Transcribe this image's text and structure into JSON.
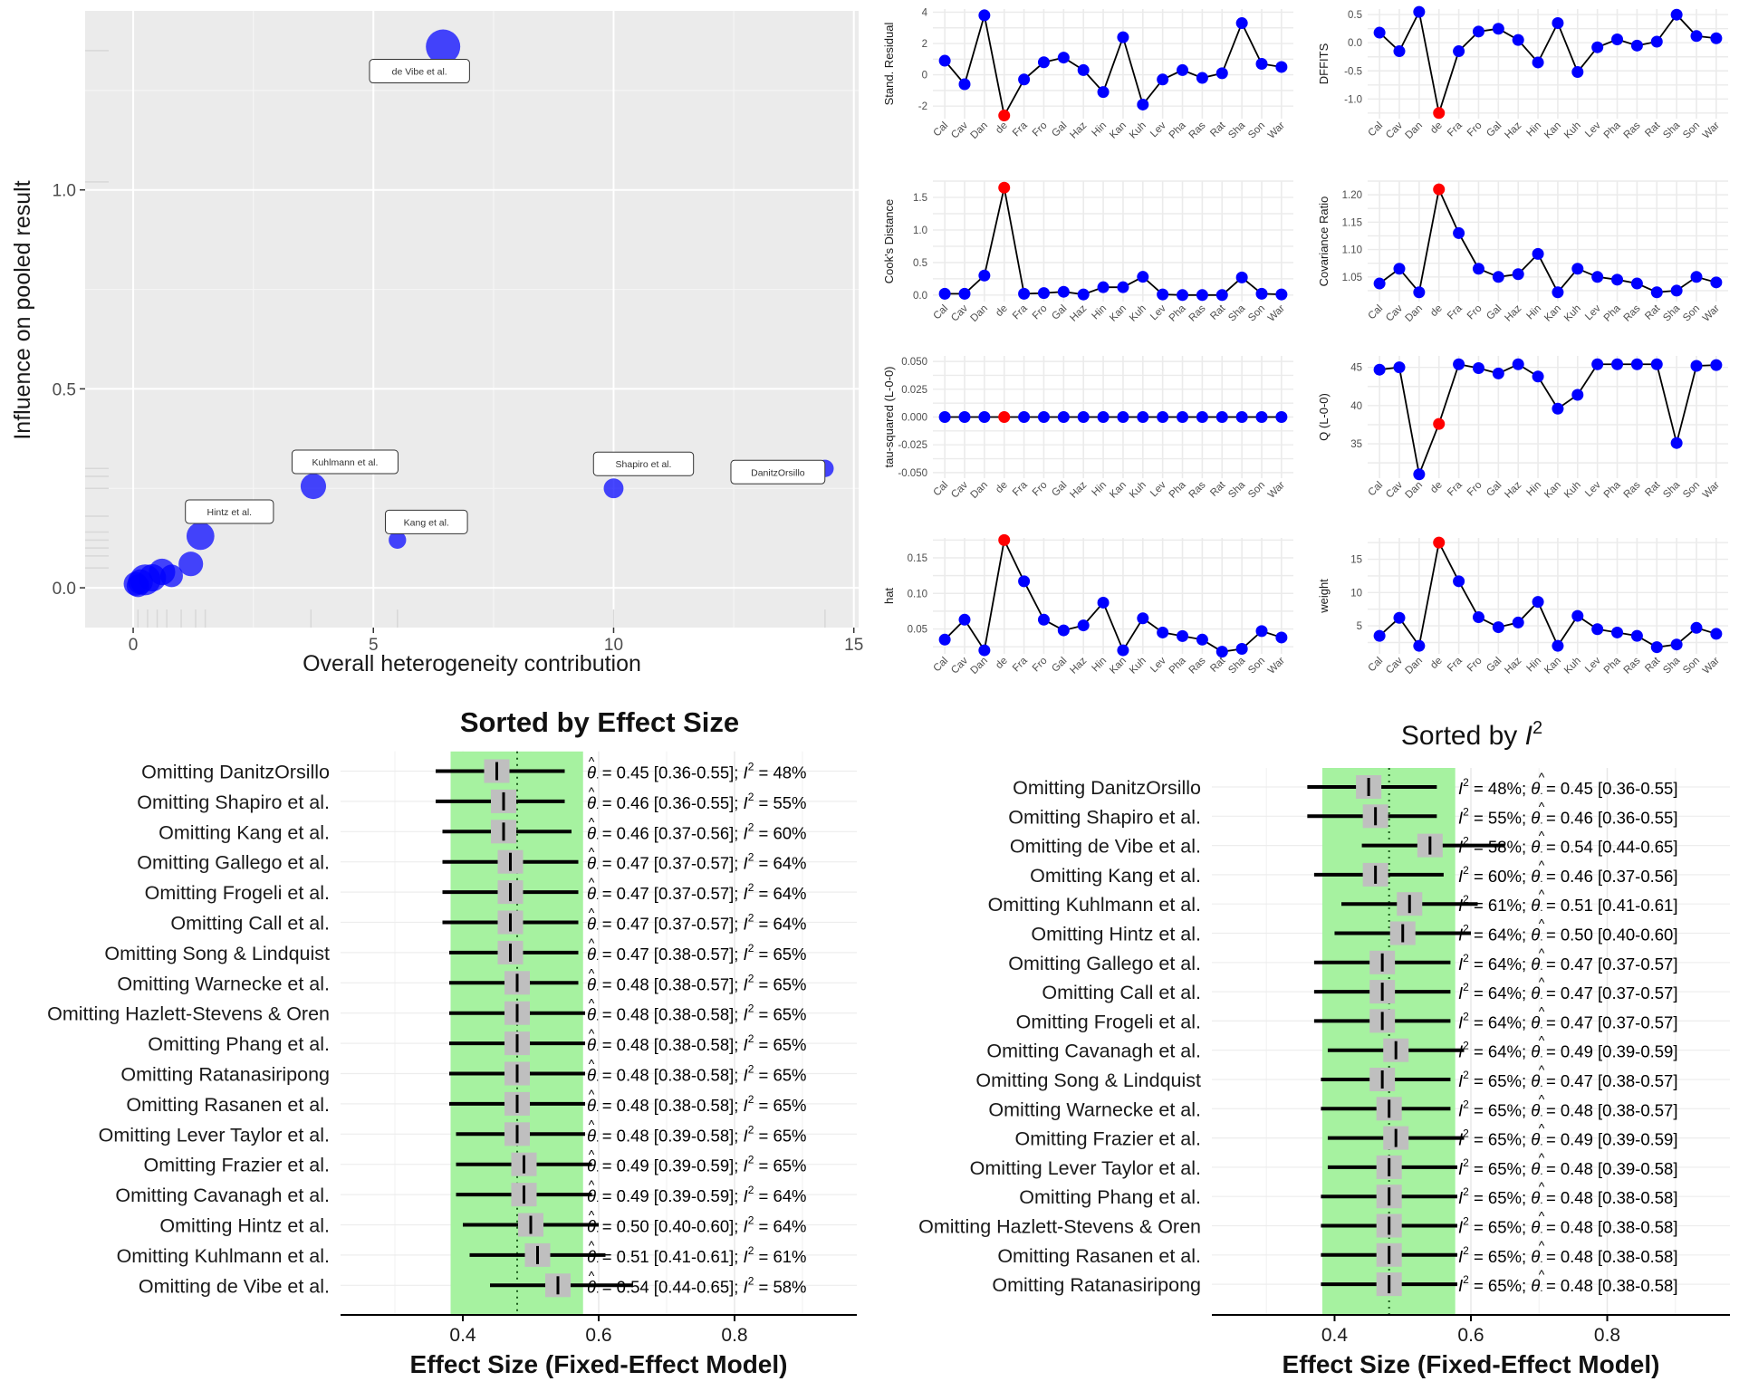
{
  "colors": {
    "panel_bg": "#EBEBEB",
    "grid_major": "#FFFFFF",
    "point_blue": "#0000FF",
    "point_red": "#FF0000",
    "green_band": "#A6F2A0",
    "box_grey": "#BFBFBF",
    "text_dark": "#1A1A1A",
    "axis_text": "#4D4D4D"
  },
  "chart_data": [
    {
      "id": "baujat",
      "type": "scatter",
      "xlabel": "Overall heterogeneity contribution",
      "ylabel": "Influence on pooled result",
      "xlim": [
        -1,
        15.1
      ],
      "ylim": [
        -0.1,
        1.45
      ],
      "xticks": [
        0,
        5,
        10,
        15
      ],
      "yticks": [
        0.0,
        0.5,
        1.0
      ],
      "ytick_labels": [
        "0.0",
        "0.5",
        "1.0"
      ],
      "points": [
        {
          "x": 6.45,
          "y": 1.36,
          "size": 1.0,
          "label": "de Vibe et al."
        },
        {
          "x": 3.75,
          "y": 0.255,
          "size": 0.62,
          "label": "Kuhlmann et al."
        },
        {
          "x": 10.0,
          "y": 0.25,
          "size": 0.38,
          "label": "Shapiro et al."
        },
        {
          "x": 14.4,
          "y": 0.3,
          "size": 0.28,
          "label": "DanitzOrsillo"
        },
        {
          "x": 5.5,
          "y": 0.12,
          "size": 0.28,
          "label": "Kang et al."
        },
        {
          "x": 1.4,
          "y": 0.13,
          "size": 0.72,
          "label": "Hintz et al."
        },
        {
          "x": 1.2,
          "y": 0.06,
          "size": 0.58,
          "label": ""
        },
        {
          "x": 0.8,
          "y": 0.03,
          "size": 0.5,
          "label": ""
        },
        {
          "x": 0.6,
          "y": 0.04,
          "size": 0.66,
          "label": ""
        },
        {
          "x": 0.4,
          "y": 0.025,
          "size": 0.7,
          "label": ""
        },
        {
          "x": 0.25,
          "y": 0.02,
          "size": 0.85,
          "label": ""
        },
        {
          "x": 0.15,
          "y": 0.015,
          "size": 0.6,
          "label": ""
        },
        {
          "x": 0.05,
          "y": 0.01,
          "size": 0.55,
          "label": ""
        },
        {
          "x": 0.1,
          "y": 0.005,
          "size": 0.5,
          "label": ""
        }
      ]
    },
    {
      "id": "diagnostics",
      "type": "line",
      "x_labels": [
        "Cal",
        "Cav",
        "Dan",
        "de",
        "Fra",
        "Fro",
        "Gal",
        "Haz",
        "Hin",
        "Kan",
        "Kuh",
        "Lev",
        "Pha",
        "Ras",
        "Rat",
        "Sha",
        "Son",
        "War"
      ],
      "highlight_index": 3,
      "panels": [
        {
          "name": "Stand. Residual",
          "ylim": [
            -2.8,
            4.2
          ],
          "yticks": [
            -2,
            0,
            2,
            4
          ],
          "ytick_labels": [
            "-2",
            "0",
            "2",
            "4"
          ],
          "values": [
            0.9,
            -0.6,
            3.8,
            -2.6,
            -0.3,
            0.8,
            1.1,
            0.3,
            -1.1,
            2.4,
            -1.9,
            -0.3,
            0.3,
            -0.2,
            0.1,
            3.3,
            0.7,
            0.5
          ]
        },
        {
          "name": "DFFITS",
          "ylim": [
            -1.35,
            0.6
          ],
          "yticks": [
            -1.0,
            -0.5,
            0.0,
            0.5
          ],
          "ytick_labels": [
            "-1.0",
            "-0.5",
            "0.0",
            "0.5"
          ],
          "values": [
            0.18,
            -0.15,
            0.55,
            -1.25,
            -0.15,
            0.2,
            0.25,
            0.05,
            -0.35,
            0.35,
            -0.52,
            -0.08,
            0.06,
            -0.05,
            0.02,
            0.5,
            0.12,
            0.08
          ]
        },
        {
          "name": "Cook's Distance",
          "ylim": [
            -0.1,
            1.75
          ],
          "yticks": [
            0.0,
            0.5,
            1.0,
            1.5
          ],
          "ytick_labels": [
            "0.0",
            "0.5",
            "1.0",
            "1.5"
          ],
          "values": [
            0.02,
            0.02,
            0.3,
            1.65,
            0.02,
            0.03,
            0.05,
            0.01,
            0.12,
            0.12,
            0.28,
            0.01,
            0.0,
            0.0,
            0.0,
            0.27,
            0.02,
            0.01
          ]
        },
        {
          "name": "Covariance Ratio",
          "ylim": [
            1.005,
            1.225
          ],
          "yticks": [
            1.05,
            1.1,
            1.15,
            1.2
          ],
          "ytick_labels": [
            "1.05",
            "1.10",
            "1.15",
            "1.20"
          ],
          "values": [
            1.038,
            1.065,
            1.022,
            1.21,
            1.13,
            1.065,
            1.05,
            1.055,
            1.092,
            1.022,
            1.065,
            1.05,
            1.045,
            1.038,
            1.022,
            1.025,
            1.05,
            1.04
          ]
        },
        {
          "name": "tau-squared (L-0-0)",
          "ylim": [
            -0.055,
            0.055
          ],
          "yticks": [
            -0.05,
            -0.025,
            0.0,
            0.025,
            0.05
          ],
          "ytick_labels": [
            "-0.050",
            "-0.025",
            "0.000",
            "0.025",
            "0.050"
          ],
          "values": [
            0,
            0,
            0,
            0,
            0,
            0,
            0,
            0,
            0,
            0,
            0,
            0,
            0,
            0,
            0,
            0,
            0,
            0
          ]
        },
        {
          "name": "Q (L-0-0)",
          "ylim": [
            30.5,
            46.5
          ],
          "yticks": [
            35,
            40,
            45
          ],
          "ytick_labels": [
            "35",
            "40",
            "45"
          ],
          "values": [
            44.7,
            45.0,
            31.0,
            37.6,
            45.4,
            44.9,
            44.2,
            45.4,
            43.8,
            39.6,
            41.4,
            45.4,
            45.4,
            45.4,
            45.4,
            35.1,
            45.2,
            45.3
          ]
        },
        {
          "name": "hat",
          "ylim": [
            0.015,
            0.178
          ],
          "yticks": [
            0.05,
            0.1,
            0.15
          ],
          "ytick_labels": [
            "0.05",
            "0.10",
            "0.15"
          ],
          "values": [
            0.035,
            0.063,
            0.02,
            0.175,
            0.117,
            0.063,
            0.048,
            0.055,
            0.087,
            0.02,
            0.065,
            0.045,
            0.04,
            0.035,
            0.018,
            0.022,
            0.047,
            0.038
          ]
        },
        {
          "name": "weight",
          "ylim": [
            0.8,
            18.2
          ],
          "yticks": [
            5,
            10,
            15
          ],
          "ytick_labels": [
            "5",
            "10",
            "15"
          ],
          "values": [
            3.5,
            6.2,
            2.0,
            17.5,
            11.7,
            6.3,
            4.8,
            5.5,
            8.6,
            2.0,
            6.5,
            4.5,
            4.0,
            3.5,
            1.8,
            2.2,
            4.7,
            3.8
          ]
        }
      ]
    },
    {
      "id": "forest_es",
      "type": "forest",
      "title": "Sorted by Effect Size",
      "xlabel": "Effect Size (Fixed-Effect Model)",
      "xlim": [
        0.22,
        0.98
      ],
      "xticks": [
        0.4,
        0.6,
        0.8
      ],
      "xtick_labels": [
        "0.4",
        "0.6",
        "0.8"
      ],
      "pooled": 0.48,
      "ci_band": [
        0.382,
        0.577
      ],
      "annotation_order": "theta_first",
      "rows": [
        {
          "label": "Omitting DanitzOrsillo",
          "est": 0.45,
          "lo": 0.36,
          "hi": 0.55,
          "i2": 48
        },
        {
          "label": "Omitting Shapiro et al.",
          "est": 0.46,
          "lo": 0.36,
          "hi": 0.55,
          "i2": 55
        },
        {
          "label": "Omitting Kang et al.",
          "est": 0.46,
          "lo": 0.37,
          "hi": 0.56,
          "i2": 60
        },
        {
          "label": "Omitting Gallego et al.",
          "est": 0.47,
          "lo": 0.37,
          "hi": 0.57,
          "i2": 64
        },
        {
          "label": "Omitting Frogeli et al.",
          "est": 0.47,
          "lo": 0.37,
          "hi": 0.57,
          "i2": 64
        },
        {
          "label": "Omitting Call et al.",
          "est": 0.47,
          "lo": 0.37,
          "hi": 0.57,
          "i2": 64
        },
        {
          "label": "Omitting Song & Lindquist",
          "est": 0.47,
          "lo": 0.38,
          "hi": 0.57,
          "i2": 65
        },
        {
          "label": "Omitting Warnecke et al.",
          "est": 0.48,
          "lo": 0.38,
          "hi": 0.57,
          "i2": 65
        },
        {
          "label": "Omitting Hazlett-Stevens & Oren",
          "est": 0.48,
          "lo": 0.38,
          "hi": 0.58,
          "i2": 65
        },
        {
          "label": "Omitting Phang et al.",
          "est": 0.48,
          "lo": 0.38,
          "hi": 0.58,
          "i2": 65
        },
        {
          "label": "Omitting Ratanasiripong",
          "est": 0.48,
          "lo": 0.38,
          "hi": 0.58,
          "i2": 65
        },
        {
          "label": "Omitting Rasanen et al.",
          "est": 0.48,
          "lo": 0.38,
          "hi": 0.58,
          "i2": 65
        },
        {
          "label": "Omitting Lever Taylor et al.",
          "est": 0.48,
          "lo": 0.39,
          "hi": 0.58,
          "i2": 65
        },
        {
          "label": "Omitting Frazier et al.",
          "est": 0.49,
          "lo": 0.39,
          "hi": 0.59,
          "i2": 65
        },
        {
          "label": "Omitting Cavanagh et al.",
          "est": 0.49,
          "lo": 0.39,
          "hi": 0.59,
          "i2": 64
        },
        {
          "label": "Omitting Hintz et al.",
          "est": 0.5,
          "lo": 0.4,
          "hi": 0.6,
          "i2": 64
        },
        {
          "label": "Omitting Kuhlmann et al.",
          "est": 0.51,
          "lo": 0.41,
          "hi": 0.61,
          "i2": 61
        },
        {
          "label": "Omitting de Vibe et al.",
          "est": 0.54,
          "lo": 0.44,
          "hi": 0.65,
          "i2": 58
        }
      ]
    },
    {
      "id": "forest_i2",
      "type": "forest",
      "title": "Sorted by I2",
      "title_text": "Sorted by ",
      "title_symbol": "I",
      "title_sup": "2",
      "xlabel": "Effect Size (Fixed-Effect Model)",
      "xlim": [
        0.22,
        0.98
      ],
      "xticks": [
        0.4,
        0.6,
        0.8
      ],
      "xtick_labels": [
        "0.4",
        "0.6",
        "0.8"
      ],
      "pooled": 0.48,
      "ci_band": [
        0.382,
        0.577
      ],
      "annotation_order": "i2_first",
      "rows": [
        {
          "label": "Omitting DanitzOrsillo",
          "est": 0.45,
          "lo": 0.36,
          "hi": 0.55,
          "i2": 48
        },
        {
          "label": "Omitting Shapiro et al.",
          "est": 0.46,
          "lo": 0.36,
          "hi": 0.55,
          "i2": 55
        },
        {
          "label": "Omitting de Vibe et al.",
          "est": 0.54,
          "lo": 0.44,
          "hi": 0.65,
          "i2": 58
        },
        {
          "label": "Omitting Kang et al.",
          "est": 0.46,
          "lo": 0.37,
          "hi": 0.56,
          "i2": 60
        },
        {
          "label": "Omitting Kuhlmann et al.",
          "est": 0.51,
          "lo": 0.41,
          "hi": 0.61,
          "i2": 61
        },
        {
          "label": "Omitting Hintz et al.",
          "est": 0.5,
          "lo": 0.4,
          "hi": 0.6,
          "i2": 64
        },
        {
          "label": "Omitting Gallego et al.",
          "est": 0.47,
          "lo": 0.37,
          "hi": 0.57,
          "i2": 64
        },
        {
          "label": "Omitting Call et al.",
          "est": 0.47,
          "lo": 0.37,
          "hi": 0.57,
          "i2": 64
        },
        {
          "label": "Omitting Frogeli et al.",
          "est": 0.47,
          "lo": 0.37,
          "hi": 0.57,
          "i2": 64
        },
        {
          "label": "Omitting Cavanagh et al.",
          "est": 0.49,
          "lo": 0.39,
          "hi": 0.59,
          "i2": 64
        },
        {
          "label": "Omitting Song & Lindquist",
          "est": 0.47,
          "lo": 0.38,
          "hi": 0.57,
          "i2": 65
        },
        {
          "label": "Omitting Warnecke et al.",
          "est": 0.48,
          "lo": 0.38,
          "hi": 0.57,
          "i2": 65
        },
        {
          "label": "Omitting Frazier et al.",
          "est": 0.49,
          "lo": 0.39,
          "hi": 0.59,
          "i2": 65
        },
        {
          "label": "Omitting Lever Taylor et al.",
          "est": 0.48,
          "lo": 0.39,
          "hi": 0.58,
          "i2": 65
        },
        {
          "label": "Omitting Phang et al.",
          "est": 0.48,
          "lo": 0.38,
          "hi": 0.58,
          "i2": 65
        },
        {
          "label": "Omitting Hazlett-Stevens & Oren",
          "est": 0.48,
          "lo": 0.38,
          "hi": 0.58,
          "i2": 65
        },
        {
          "label": "Omitting Rasanen et al.",
          "est": 0.48,
          "lo": 0.38,
          "hi": 0.58,
          "i2": 65
        },
        {
          "label": "Omitting Ratanasiripong",
          "est": 0.48,
          "lo": 0.38,
          "hi": 0.58,
          "i2": 65
        }
      ]
    }
  ]
}
